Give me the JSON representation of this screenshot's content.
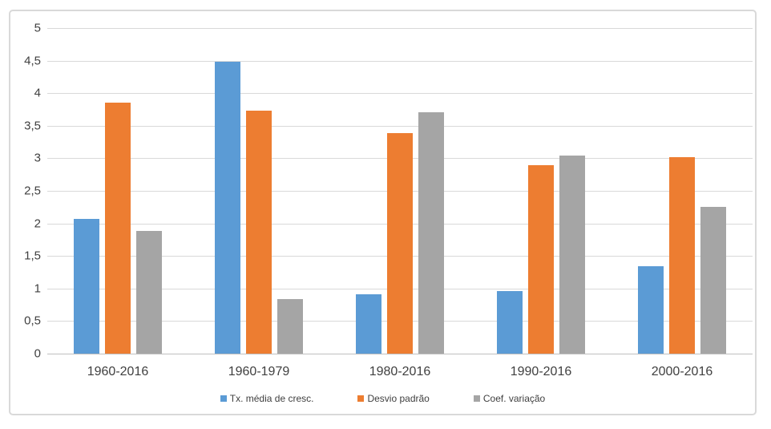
{
  "chart_data": {
    "type": "bar",
    "categories": [
      "1960-2016",
      "1960-1979",
      "1980-2016",
      "1990-2016",
      "2000-2016"
    ],
    "series": [
      {
        "name": "Tx. média de cresc.",
        "color": "#5B9BD5",
        "values": [
          2.07,
          4.48,
          0.91,
          0.96,
          1.34
        ]
      },
      {
        "name": "Desvio padrão",
        "color": "#ED7D31",
        "values": [
          3.86,
          3.73,
          3.39,
          2.9,
          3.02
        ]
      },
      {
        "name": "Coef. variação",
        "color": "#A5A5A5",
        "values": [
          1.88,
          0.84,
          3.71,
          3.04,
          2.26
        ]
      }
    ],
    "title": "",
    "xlabel": "",
    "ylabel": "",
    "ylim": [
      0,
      5
    ],
    "ytick_step": 0.5,
    "ytick_labels": [
      "0",
      "0,5",
      "1",
      "1,5",
      "2",
      "2,5",
      "3",
      "3,5",
      "4",
      "4,5",
      "5"
    ],
    "grid": true,
    "legend_position": "bottom",
    "decimal_separator": ","
  },
  "colors": {
    "background": "#FFFFFF",
    "border": "#D9D9D9",
    "gridline": "#D9D9D9",
    "axis_line": "#BFBFBF",
    "tick_text": "#404040",
    "legend_text": "#404040"
  }
}
